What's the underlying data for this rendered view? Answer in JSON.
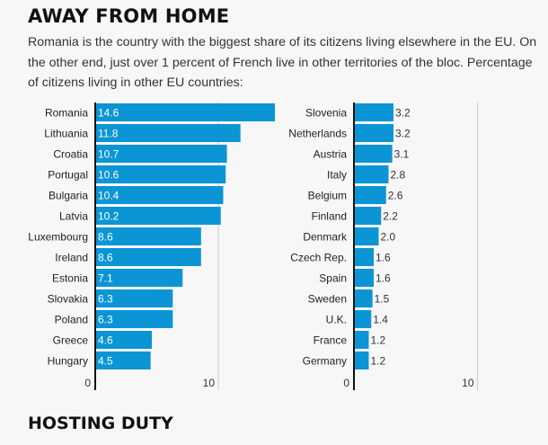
{
  "header": {
    "title": "AWAY FROM HOME",
    "description": "Romania is the country with the biggest share of its citizens living elsewhere in the EU. On the other end, just over 1 percent of French live in other territories of the bloc. Percentage of citizens living in other EU countries:"
  },
  "next_section": {
    "title": "HOSTING DUTY"
  },
  "colors": {
    "bar": "#0b95d5",
    "axis": "#111111",
    "grid": "#cccccc",
    "background": "#f7f7f7"
  },
  "chart_data": [
    {
      "type": "bar",
      "orientation": "horizontal",
      "categories": [
        "Romania",
        "Lithuania",
        "Croatia",
        "Portugal",
        "Bulgaria",
        "Latvia",
        "Luxembourg",
        "Ireland",
        "Estonia",
        "Slovakia",
        "Poland",
        "Greece",
        "Hungary"
      ],
      "values": [
        14.6,
        11.8,
        10.7,
        10.6,
        10.4,
        10.2,
        8.6,
        8.6,
        7.1,
        6.3,
        6.3,
        4.6,
        4.5
      ],
      "labels": [
        "14.6",
        "11.8",
        "10.7",
        "10.6",
        "10.4",
        "10.2",
        "8.6",
        "8.6",
        "7.1",
        "6.3",
        "6.3",
        "4.6",
        "4.5"
      ],
      "xticks": [
        "0",
        "10"
      ],
      "xlim": [
        0,
        14.6
      ],
      "label_position": "inside",
      "grid": true
    },
    {
      "type": "bar",
      "orientation": "horizontal",
      "categories": [
        "Slovenia",
        "Netherlands",
        "Austria",
        "Italy",
        "Belgium",
        "Finland",
        "Denmark",
        "Czech Rep.",
        "Spain",
        "Sweden",
        "U.K.",
        "France",
        "Germany"
      ],
      "values": [
        3.2,
        3.2,
        3.1,
        2.8,
        2.6,
        2.2,
        2.0,
        1.6,
        1.6,
        1.5,
        1.4,
        1.2,
        1.2
      ],
      "labels": [
        "3.2",
        "3.2",
        "3.1",
        "2.8",
        "2.6",
        "2.2",
        "2.0",
        "1.6",
        "1.6",
        "1.5",
        "1.4",
        "1.2",
        "1.2"
      ],
      "xticks": [
        "0",
        "10"
      ],
      "xlim": [
        0,
        14.6
      ],
      "label_position": "outside",
      "grid": true
    }
  ]
}
